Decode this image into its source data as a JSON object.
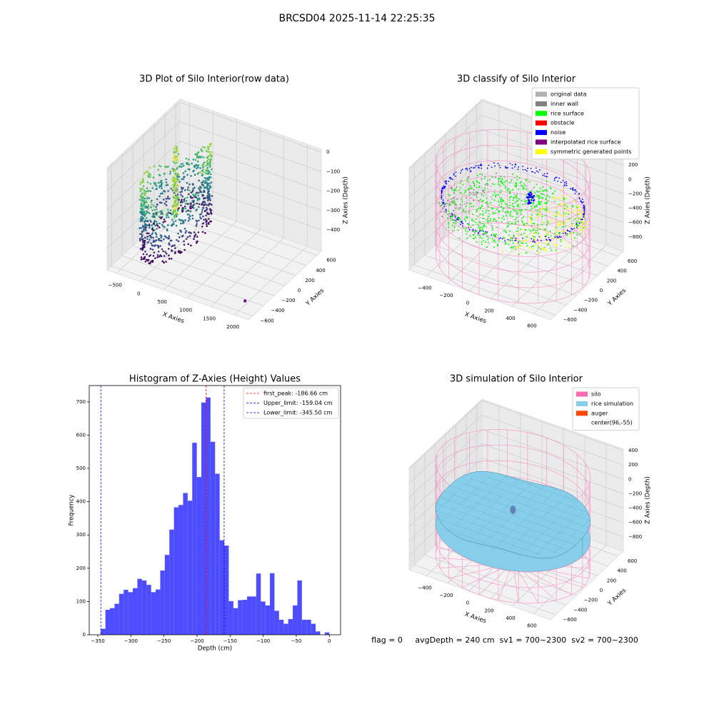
{
  "title": "BRCSD04 2025-11-14 22:25:35",
  "footer": "flag = 0     avgDepth = 240 cm  sv1 = 700~2300  sv2 = 700~2300",
  "chart_data": [
    {
      "type": "scatter3d",
      "title": "3D Plot of Silo Interior(row data)",
      "xlabel": "X Axies",
      "ylabel": "Y Axies",
      "zlabel": "Z Axies (Depth)",
      "xlim": [
        -700,
        2300
      ],
      "ylim": [
        -680,
        680
      ],
      "zlim": [
        -510,
        15
      ],
      "xticks": [
        {
          "value": -500,
          "label": "−500"
        },
        0,
        500,
        1000,
        1500,
        2000
      ],
      "yticks": [
        {
          "value": -600,
          "label": "−600"
        },
        {
          "value": -400,
          "label": "−400"
        },
        {
          "value": -200,
          "label": "−200"
        },
        0,
        200,
        400,
        600
      ],
      "zticks": [
        {
          "value": -400,
          "label": "−400"
        },
        {
          "value": -300,
          "label": "−300"
        },
        {
          "value": -200,
          "label": "−200"
        },
        {
          "value": -100,
          "label": "−100"
        },
        0
      ]
    },
    {
      "type": "scatter3d",
      "title": "3D classify of Silo Interior",
      "xlabel": "X Axies",
      "ylabel": "Y Axies",
      "zlabel": "Z Axies (Depth)",
      "xlim": [
        -560,
        760
      ],
      "ylim": [
        -700,
        700
      ],
      "zlim": [
        -1000,
        420
      ],
      "xticks": [
        {
          "value": -400,
          "label": "−400"
        },
        {
          "value": -200,
          "label": "−200"
        },
        0,
        200,
        400,
        600
      ],
      "yticks": [
        {
          "value": -600,
          "label": "−600"
        },
        {
          "value": -400,
          "label": "−400"
        },
        {
          "value": -200,
          "label": "−200"
        },
        0,
        200,
        400,
        600
      ],
      "zticks": [
        {
          "value": -800,
          "label": "−800"
        },
        {
          "value": -600,
          "label": "−600"
        },
        {
          "value": -400,
          "label": "−400"
        },
        {
          "value": -200,
          "label": "−200"
        },
        0,
        200,
        400
      ],
      "legend": "upper right",
      "series": [
        {
          "name": "original data",
          "color": "#b0b0b0"
        },
        {
          "name": "inner wall",
          "color": "#808080"
        },
        {
          "name": "rice surface",
          "color": "#00ff00"
        },
        {
          "name": "obstacle",
          "color": "#ff0000"
        },
        {
          "name": "noise",
          "color": "#0000ff"
        },
        {
          "name": "interpolated rice surface",
          "color": "#800080"
        },
        {
          "name": "symmetric generated points",
          "color": "#ffff00"
        }
      ]
    },
    {
      "type": "histogram",
      "title": "Histogram of Z-Axies (Height) Values",
      "xlabel": "Depth (cm)",
      "ylabel": "Frequency",
      "color": "#4d4dff",
      "bins": [
        -345.5,
        -338.59,
        -331.68,
        -324.77,
        -317.86,
        -310.95,
        -304.04,
        -297.13,
        -290.22,
        -283.31,
        -276.4,
        -269.49,
        -262.58,
        -255.67,
        -248.76,
        -241.85,
        -234.94,
        -228.03,
        -221.12,
        -214.21,
        -207.3,
        -200.39,
        -193.48,
        -186.57,
        -179.66,
        -172.75,
        -165.84,
        -158.93,
        -152.02,
        -145.11,
        -138.2,
        -131.29,
        -124.38,
        -117.47,
        -110.56,
        -103.65,
        -96.74,
        -89.83,
        -82.92,
        -76.01,
        -69.1,
        -62.19,
        -55.28,
        -48.37,
        -41.46,
        -34.55,
        -27.64,
        -20.73,
        -13.82,
        -6.91,
        0
      ],
      "counts": [
        18,
        75,
        80,
        93,
        123,
        135,
        128,
        140,
        168,
        163,
        150,
        128,
        136,
        193,
        240,
        316,
        383,
        390,
        426,
        403,
        577,
        474,
        698,
        713,
        580,
        484,
        284,
        268,
        101,
        80,
        104,
        105,
        115,
        115,
        184,
        100,
        88,
        185,
        72,
        45,
        33,
        47,
        88,
        163,
        45,
        45,
        33,
        10,
        0,
        7
      ],
      "xlim": [
        -363,
        17
      ],
      "ylim": [
        0,
        749
      ],
      "xticks": [
        {
          "value": -350,
          "label": "−350"
        },
        {
          "value": -300,
          "label": "−300"
        },
        {
          "value": -250,
          "label": "−250"
        },
        {
          "value": -200,
          "label": "−200"
        },
        {
          "value": -150,
          "label": "−150"
        },
        {
          "value": -100,
          "label": "−100"
        },
        {
          "value": -50,
          "label": "−50"
        },
        0
      ],
      "yticks": [
        0,
        100,
        200,
        300,
        400,
        500,
        600,
        700
      ],
      "legend": "upper right",
      "lines": [
        {
          "label": "first_peak: -186.66 cm",
          "value": -186.66,
          "color": "#ff0000"
        },
        {
          "label": "Upper_limit: -159.04 cm",
          "value": -159.04,
          "color": "#0000ff"
        },
        {
          "label": "Lower_limit: -345.50 cm",
          "value": -345.5,
          "color": "#0000ff"
        }
      ]
    },
    {
      "type": "surface3d",
      "title": "3D simulation of Silo Interior",
      "xlabel": "X Axies",
      "ylabel": "Y Axies",
      "zlabel": "Z Axies (Depth)",
      "xlim": [
        -560,
        760
      ],
      "ylim": [
        -700,
        700
      ],
      "zlim": [
        -1000,
        420
      ],
      "xticks": [
        {
          "value": -400,
          "label": "−400"
        },
        {
          "value": -200,
          "label": "−200"
        },
        0,
        200,
        400,
        600
      ],
      "yticks": [
        {
          "value": -600,
          "label": "−600"
        },
        {
          "value": -400,
          "label": "−400"
        },
        {
          "value": -200,
          "label": "−200"
        },
        0,
        200,
        400,
        600
      ],
      "zticks": [
        {
          "value": -800,
          "label": "−800"
        },
        {
          "value": -600,
          "label": "−600"
        },
        {
          "value": -400,
          "label": "−400"
        },
        {
          "value": -200,
          "label": "−200"
        },
        0,
        200,
        400
      ],
      "legend": "upper right",
      "series": [
        {
          "name": "silo",
          "color": "#ff69b4"
        },
        {
          "name": "rice simulation",
          "color": "#87ceeb"
        },
        {
          "name": "auger",
          "color": "#ff4500"
        },
        {
          "name": "center(96,-55)",
          "color": "#ffffff"
        }
      ]
    }
  ]
}
